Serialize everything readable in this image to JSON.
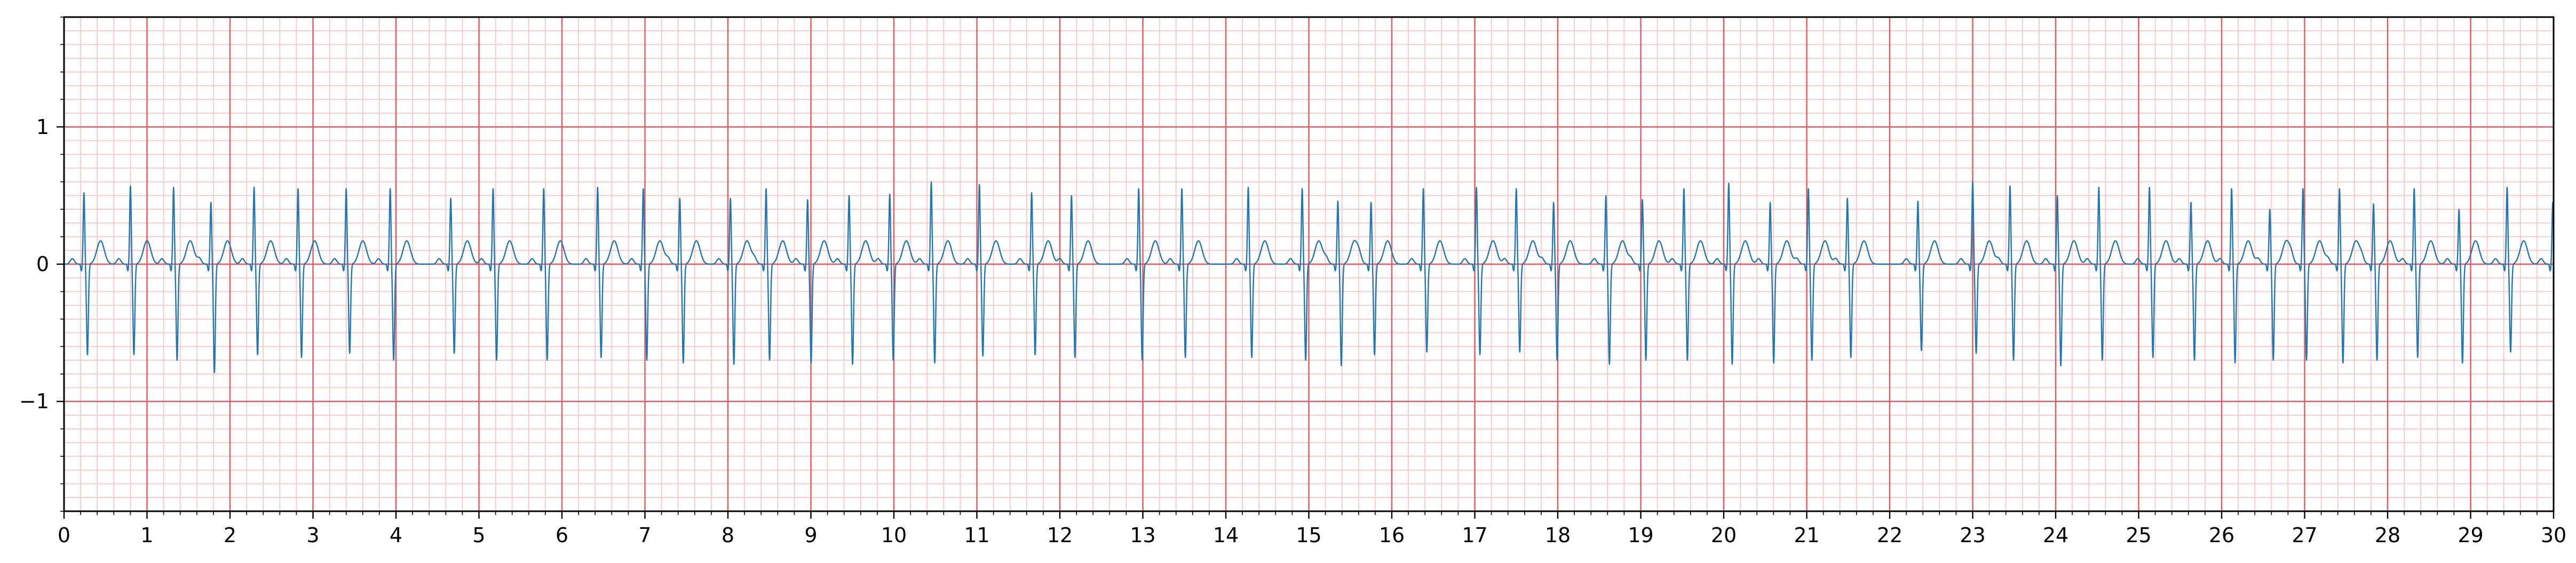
{
  "chart_data": {
    "type": "line",
    "title": "",
    "xlabel": "",
    "ylabel": "",
    "xlim": [
      0,
      30
    ],
    "ylim": [
      -1.8,
      1.8
    ],
    "x_ticks": [
      0,
      1,
      2,
      3,
      4,
      5,
      6,
      7,
      8,
      9,
      10,
      11,
      12,
      13,
      14,
      15,
      16,
      17,
      18,
      19,
      20,
      21,
      22,
      23,
      24,
      25,
      26,
      27,
      28,
      29,
      30
    ],
    "x_tick_labels": [
      "0",
      "1",
      "2",
      "3",
      "4",
      "5",
      "6",
      "7",
      "8",
      "9",
      "10",
      "11",
      "12",
      "13",
      "14",
      "15",
      "16",
      "17",
      "18",
      "19",
      "20",
      "21",
      "22",
      "23",
      "24",
      "25",
      "26",
      "27",
      "28",
      "29",
      "30"
    ],
    "y_ticks": [
      -1,
      0,
      1
    ],
    "y_tick_labels": [
      "−1",
      "0",
      "1"
    ],
    "grid": {
      "major": true,
      "major_x_step": 1,
      "major_y_step": 1,
      "minor": true,
      "minor_x_step": 0.2,
      "minor_y_step": 0.1
    },
    "series": [
      {
        "kind": "ecg_trace",
        "r_peak_times": [
          0.24,
          0.8,
          1.32,
          1.77,
          2.29,
          2.82,
          3.4,
          3.93,
          4.66,
          5.17,
          5.78,
          6.43,
          6.98,
          7.42,
          8.03,
          8.46,
          8.96,
          9.46,
          9.95,
          10.45,
          11.03,
          11.66,
          12.14,
          12.95,
          13.47,
          14.27,
          14.92,
          15.35,
          15.75,
          16.38,
          17.02,
          17.5,
          17.95,
          18.58,
          19.02,
          19.52,
          20.06,
          20.56,
          21.02,
          21.49,
          22.34,
          23.0,
          23.45,
          24.02,
          24.52,
          25.13,
          25.63,
          26.12,
          26.58,
          26.98,
          27.42,
          27.83,
          28.32,
          28.86,
          29.44,
          29.99
        ],
        "r_amplitudes": [
          0.52,
          0.57,
          0.56,
          0.45,
          0.56,
          0.55,
          0.55,
          0.55,
          0.48,
          0.55,
          0.55,
          0.56,
          0.55,
          0.48,
          0.48,
          0.55,
          0.47,
          0.5,
          0.51,
          0.6,
          0.58,
          0.52,
          0.5,
          0.55,
          0.55,
          0.56,
          0.55,
          0.46,
          0.45,
          0.55,
          0.56,
          0.55,
          0.45,
          0.5,
          0.47,
          0.55,
          0.59,
          0.45,
          0.55,
          0.48,
          0.46,
          0.6,
          0.57,
          0.5,
          0.56,
          0.56,
          0.45,
          0.55,
          0.4,
          0.55,
          0.55,
          0.44,
          0.55,
          0.4,
          0.56,
          0.45
        ],
        "s_amplitudes": [
          -0.66,
          -0.66,
          -0.7,
          -0.79,
          -0.66,
          -0.68,
          -0.65,
          -0.7,
          -0.65,
          -0.7,
          -0.7,
          -0.68,
          -0.7,
          -0.72,
          -0.73,
          -0.7,
          -0.72,
          -0.73,
          -0.7,
          -0.72,
          -0.67,
          -0.66,
          -0.68,
          -0.7,
          -0.68,
          -0.68,
          -0.7,
          -0.74,
          -0.66,
          -0.64,
          -0.66,
          -0.64,
          -0.7,
          -0.73,
          -0.7,
          -0.7,
          -0.73,
          -0.72,
          -0.7,
          -0.68,
          -0.63,
          -0.65,
          -0.7,
          -0.74,
          -0.7,
          -0.68,
          -0.7,
          -0.72,
          -0.7,
          -0.7,
          -0.72,
          -0.7,
          -0.68,
          -0.72,
          -0.64,
          -0.1
        ],
        "t_amplitude": 0.17,
        "baseline": 0.0
      }
    ],
    "colors": {
      "trace": "#1f77b4",
      "major_grid": "#e8555a",
      "minor_grid": "#ffc0c0",
      "axis": "#000000"
    }
  }
}
